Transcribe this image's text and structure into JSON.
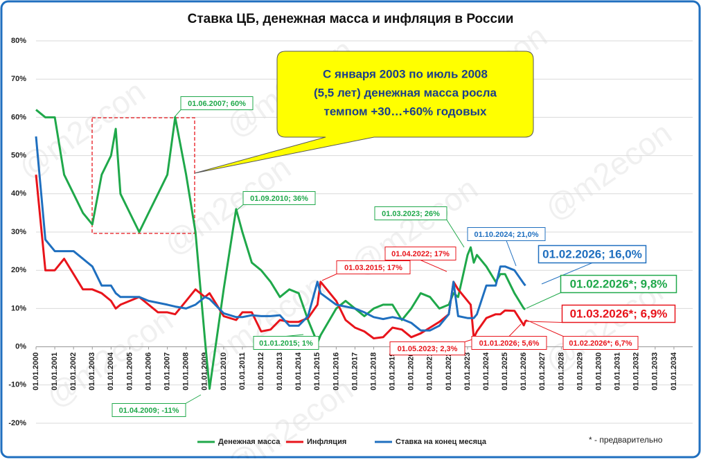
{
  "chart_data": {
    "type": "line",
    "title": "Ставка ЦБ, денежная масса и инфляция в России",
    "watermark": "@m2econ",
    "callout": [
      "С января 2003 по июль 2008",
      "(5,5 лет) денежная масса росла",
      "темпом +30…+60% годовых"
    ],
    "footnote": "* - предварительно",
    "x": [
      "01.01.2000",
      "01.07.2000",
      "01.01.2001",
      "01.07.2001",
      "01.01.2002",
      "01.07.2002",
      "01.01.2003",
      "01.07.2003",
      "01.01.2004",
      "01.04.2004",
      "01.07.2004",
      "01.01.2005",
      "01.07.2005",
      "01.01.2006",
      "01.07.2006",
      "01.01.2007",
      "01.06.2007",
      "01.01.2008",
      "01.07.2008",
      "01.01.2009",
      "01.04.2009",
      "01.01.2010",
      "01.09.2010",
      "01.01.2011",
      "01.07.2011",
      "01.01.2012",
      "01.07.2012",
      "01.01.2013",
      "01.07.2013",
      "01.01.2014",
      "01.07.2014",
      "01.01.2015",
      "01.03.2015",
      "01.01.2016",
      "01.07.2016",
      "01.01.2017",
      "01.07.2017",
      "01.01.2018",
      "01.07.2018",
      "01.01.2019",
      "01.07.2019",
      "01.01.2020",
      "01.07.2020",
      "01.01.2021",
      "01.07.2021",
      "01.01.2022",
      "01.04.2022",
      "01.07.2022",
      "01.01.2023",
      "01.03.2023",
      "01.05.2023",
      "01.07.2023",
      "01.01.2024",
      "01.07.2024",
      "01.10.2024",
      "01.01.2025",
      "01.07.2025",
      "01.01.2026",
      "01.02.2026",
      "01.03.2026"
    ],
    "series": [
      {
        "name": "Денежная масса",
        "color": "#1fa84a",
        "values": [
          62,
          60,
          60,
          45,
          40,
          35,
          32,
          45,
          50,
          57,
          40,
          35,
          30,
          35,
          40,
          45,
          60,
          45,
          30,
          2,
          -11,
          15,
          36,
          30,
          22,
          20,
          17,
          13,
          15,
          14,
          7,
          1,
          3,
          10,
          12,
          10,
          8,
          10,
          11,
          11,
          7,
          10,
          14,
          13,
          10,
          11,
          14,
          13,
          24,
          26,
          22,
          24,
          21,
          17,
          19,
          19,
          14,
          10,
          9.8,
          null
        ]
      },
      {
        "name": "Инфляция",
        "color": "#e8141b",
        "values": [
          45,
          20,
          20,
          23,
          19,
          15,
          15,
          14,
          12,
          10,
          11,
          12,
          13,
          11,
          9,
          9,
          8.5,
          12,
          15,
          13,
          14,
          8,
          7,
          9,
          9,
          4,
          4.5,
          7,
          6.5,
          6.5,
          7.5,
          11,
          17,
          12,
          7,
          5,
          4,
          2.2,
          2.5,
          5,
          4.5,
          2.5,
          3.5,
          5,
          6.5,
          8.5,
          17,
          15,
          12,
          11,
          2.3,
          4,
          7.5,
          8.5,
          8.5,
          9.5,
          9.4,
          5.6,
          6.7,
          6.9
        ]
      },
      {
        "name": "Ставка на конец месяца",
        "color": "#1f6fbf",
        "values": [
          55,
          28,
          25,
          25,
          25,
          23,
          21,
          16,
          16,
          14,
          13,
          13,
          13,
          12,
          11.5,
          11,
          10.5,
          10,
          11,
          13,
          12.5,
          8.75,
          7.75,
          7.75,
          8.25,
          8,
          8,
          8.25,
          5.5,
          5.5,
          8,
          17,
          14,
          11,
          10.5,
          10,
          9,
          7.75,
          7.25,
          7.75,
          7.25,
          6.25,
          4.25,
          4.25,
          5.5,
          8.5,
          17,
          8,
          7.5,
          7.5,
          7.5,
          8.5,
          16,
          16,
          21,
          21,
          20,
          16.5,
          16,
          null
        ]
      }
    ],
    "xlim": [
      "01.01.2000",
      "01.01.2035"
    ],
    "xticks": [
      "01.01.2000",
      "01.01.2001",
      "01.01.2002",
      "01.01.2003",
      "01.01.2004",
      "01.01.2005",
      "01.01.2006",
      "01.01.2007",
      "01.01.2008",
      "01.01.2009",
      "01.01.2010",
      "01.01.2011",
      "01.01.2012",
      "01.01.2013",
      "01.01.2014",
      "01.01.2015",
      "01.01.2016",
      "01.01.2017",
      "01.01.2018",
      "01.01.2019",
      "01.01.2020",
      "01.01.2021",
      "01.01.2022",
      "01.01.2023",
      "01.01.2024",
      "01.01.2025",
      "01.01.2026",
      "01.01.2027",
      "01.01.2028",
      "01.01.2029",
      "01.01.2030",
      "01.01.2031",
      "01.01.2032",
      "01.01.2033",
      "01.01.2034"
    ],
    "ylim": [
      -20,
      80
    ],
    "yticks": [
      {
        "value": -20,
        "label": "-20%"
      },
      {
        "value": -10,
        "label": "-10%"
      },
      {
        "value": 0,
        "label": "0%"
      },
      {
        "value": 10,
        "label": "10%"
      },
      {
        "value": 20,
        "label": "20%"
      },
      {
        "value": 30,
        "label": "30%"
      },
      {
        "value": 40,
        "label": "40%"
      },
      {
        "value": 50,
        "label": "50%"
      },
      {
        "value": 60,
        "label": "60%"
      },
      {
        "value": 70,
        "label": "70%"
      },
      {
        "value": 80,
        "label": "80%"
      }
    ],
    "grid": true,
    "legend": "bottom",
    "annotations": [
      {
        "text": "01.06.2007; 60%",
        "color": "#1fa84a"
      },
      {
        "text": "01.09.2010; 36%",
        "color": "#1fa84a"
      },
      {
        "text": "01.03.2023; 26%",
        "color": "#1fa84a"
      },
      {
        "text": "01.10.2024; 21,0%",
        "color": "#1f6fbf"
      },
      {
        "text": "01.04.2022; 17%",
        "color": "#e8141b"
      },
      {
        "text": "01.03.2015; 17%",
        "color": "#e8141b"
      },
      {
        "text": "01.01.2015; 1%",
        "color": "#1fa84a"
      },
      {
        "text": "01.05.2023; 2,3%",
        "color": "#e8141b"
      },
      {
        "text": "01.01.2026; 5,6%",
        "color": "#e8141b"
      },
      {
        "text": "01.02.2026*; 6,7%",
        "color": "#e8141b"
      },
      {
        "text": "01.04.2009; -11%",
        "color": "#1fa84a"
      },
      {
        "text": "01.02.2026; 16,0%",
        "color": "#1f6fbf"
      },
      {
        "text": "01.02.2026*; 9,8%",
        "color": "#1fa84a"
      },
      {
        "text": "01.03.2026*; 6,9%",
        "color": "#e8141b"
      }
    ]
  }
}
